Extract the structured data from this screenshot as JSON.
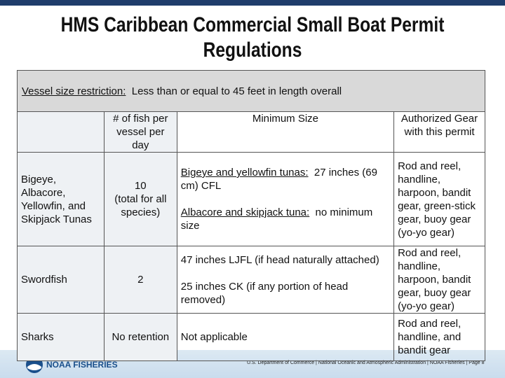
{
  "title": "HMS Caribbean Commercial Small Boat Permit Regulations",
  "table": {
    "caption": {
      "label": "Vessel size restriction:",
      "text": "Less than or equal to 45 feet in length overall"
    },
    "columns": [
      "# of fish per vessel per day",
      "Minimum Size",
      "Authorized Gear with this permit"
    ],
    "rows": [
      {
        "species": "Bigeye, Albacore, Yellowfin, and Skipjack Tunas",
        "fish": "10",
        "fish_note": "(total for all species)",
        "size": [
          {
            "label": "Bigeye and yellowfin tunas:",
            "text": "27 inches (69 cm) CFL"
          },
          {
            "label": "Albacore and skipjack tuna:",
            "text": "no minimum size"
          }
        ],
        "gear": "Rod and reel, handline, harpoon, bandit gear, green-stick gear, buoy gear (yo-yo gear)"
      },
      {
        "species": "Swordfish",
        "fish": "2",
        "size": [
          {
            "text": "47 inches LJFL (if head naturally attached)"
          },
          {
            "text": "25 inches CK (if any portion of head removed)"
          }
        ],
        "gear": "Rod and reel, handline, harpoon, bandit gear, buoy gear (yo-yo gear)"
      },
      {
        "species": "Sharks",
        "fish": "No retention",
        "size": [
          {
            "text": "Not applicable"
          }
        ],
        "gear": "Rod and reel, handline, and bandit gear"
      }
    ]
  },
  "footer": {
    "logo": "NOAA FISHERIES",
    "text": "U.S. Department of Commerce | National Oceanic and Atmospheric Administration | NOAA Fisheries | Page 8"
  }
}
